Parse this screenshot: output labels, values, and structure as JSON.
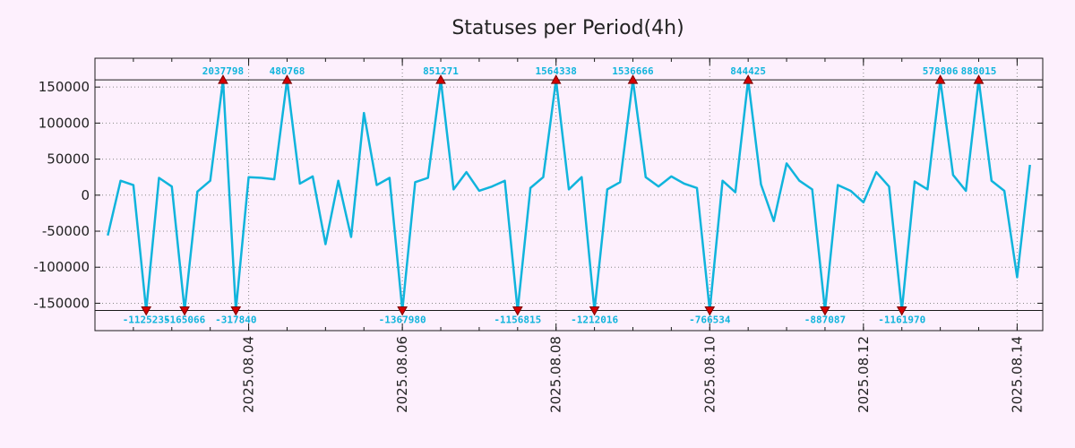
{
  "chart_data": {
    "type": "line",
    "title": "Statuses per Period(4h)",
    "xlabel": "",
    "ylabel": "",
    "ylim": [
      -188000,
      190000
    ],
    "clip_limits": [
      -160000,
      160000
    ],
    "x_range_hours": [
      -4,
      292
    ],
    "x_origin_label": "2025.08.03 04:00",
    "interval_hours": 4,
    "y_ticks": [
      -150000,
      -100000,
      -50000,
      0,
      50000,
      100000,
      150000
    ],
    "y_tick_labels": [
      "-150000",
      "-100000",
      "-50000",
      "0",
      "50000",
      "100000",
      "150000"
    ],
    "x_ticks_hours": [
      44,
      92,
      140,
      188,
      236,
      284
    ],
    "x_tick_labels": [
      "2025.08.04",
      "2025.08.06",
      "2025.08.08",
      "2025.08.10",
      "2025.08.12",
      "2025.08.14"
    ],
    "grid": true,
    "series": [
      {
        "name": "Statuses per Period(4h)",
        "color": "#10b4dc",
        "values": [
          -56000,
          20000,
          14000,
          -160000,
          24000,
          12000,
          -160000,
          5000,
          20000,
          160000,
          -160000,
          25000,
          24000,
          22000,
          160000,
          16000,
          26000,
          -68000,
          20000,
          -58000,
          114000,
          14000,
          24000,
          -160000,
          18000,
          24000,
          160000,
          8000,
          32000,
          6000,
          12000,
          20000,
          -160000,
          10000,
          25000,
          160000,
          8000,
          25000,
          -160000,
          8000,
          18000,
          160000,
          25000,
          12000,
          26000,
          16000,
          10000,
          -160000,
          20000,
          4000,
          160000,
          15000,
          -36000,
          44000,
          20000,
          8000,
          -160000,
          14000,
          6000,
          -10000,
          32000,
          12000,
          -160000,
          19000,
          8000,
          160000,
          28000,
          6000,
          160000,
          20000,
          6000,
          -114000,
          42000
        ]
      }
    ],
    "annotations": [
      {
        "index": 3,
        "label": "-1125235",
        "kind": "min"
      },
      {
        "index": 6,
        "label": "-165066",
        "kind": "min"
      },
      {
        "index": 9,
        "label": "2037798",
        "kind": "max"
      },
      {
        "index": 10,
        "label": "-317840",
        "kind": "min"
      },
      {
        "index": 14,
        "label": "480768",
        "kind": "max"
      },
      {
        "index": 23,
        "label": "-1367980",
        "kind": "min"
      },
      {
        "index": 26,
        "label": "851271",
        "kind": "max"
      },
      {
        "index": 32,
        "label": "-1156815",
        "kind": "min"
      },
      {
        "index": 35,
        "label": "1564338",
        "kind": "max"
      },
      {
        "index": 38,
        "label": "-1212016",
        "kind": "min"
      },
      {
        "index": 41,
        "label": "1536666",
        "kind": "max"
      },
      {
        "index": 47,
        "label": "-766534",
        "kind": "min"
      },
      {
        "index": 50,
        "label": "844425",
        "kind": "max"
      },
      {
        "index": 56,
        "label": "-887087",
        "kind": "min"
      },
      {
        "index": 62,
        "label": "-1161970",
        "kind": "min"
      },
      {
        "index": 65,
        "label": "578806",
        "kind": "max"
      },
      {
        "index": 68,
        "label": "888015",
        "kind": "max"
      }
    ]
  },
  "style": {
    "background": "#fdf0fd",
    "plot_background": "#fdf0fd",
    "line_color": "#10b4dc",
    "marker_color": "#d40000",
    "grid_color": "#8a8a8a",
    "frame_color": "#1a1a1a"
  }
}
